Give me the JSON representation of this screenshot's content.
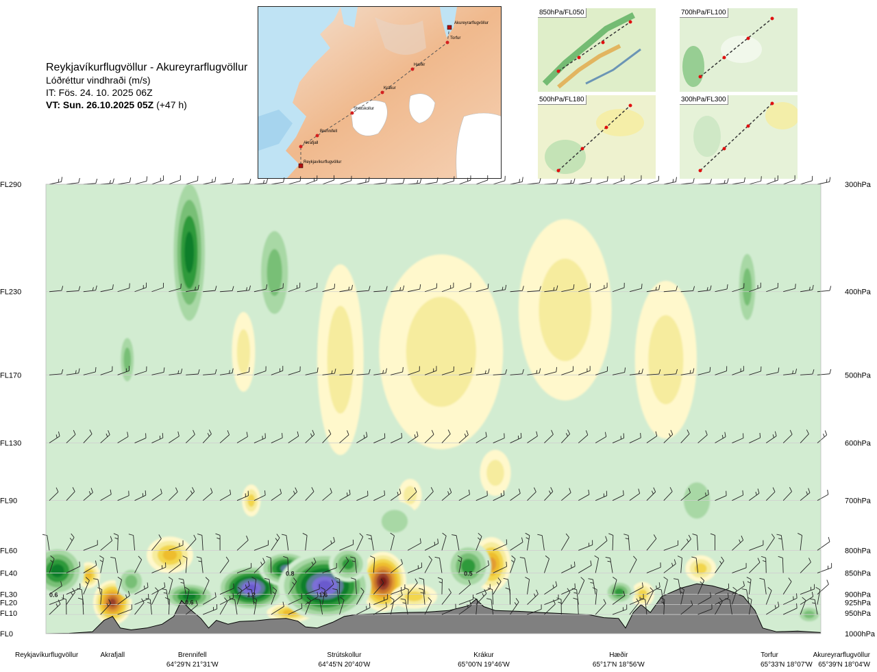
{
  "header": {
    "title": "Reykjavíkurflugvöllur - Akureyrarflugvöllur",
    "subtitle": "Lóðréttur vindhraði (m/s)",
    "issue_time": "IT: Fös. 24. 10. 2025 06Z",
    "valid_time": "VT: Sun. 26.10.2025 05Z",
    "lead_time": "(+47 h)"
  },
  "route_map": {
    "waypoints": [
      "Akureyrarflugvöllur",
      "Torfur",
      "Hæðir",
      "Krákur",
      "Strútskollur",
      "Brennifell",
      "Akrafjall",
      "Reykjavíkurflugvöllur"
    ]
  },
  "level_maps": [
    {
      "label": "850hPa/FL050"
    },
    {
      "label": "700hPa/FL100"
    },
    {
      "label": "500hPa/FL180"
    },
    {
      "label": "300hPa/FL300"
    }
  ],
  "chart_data": {
    "type": "heatmap",
    "title": "Lóðréttur vindhraði (m/s)",
    "flight_levels": [
      {
        "fl": "FL290",
        "hpa": "300hPa",
        "p": 300
      },
      {
        "fl": "FL230",
        "hpa": "400hPa",
        "p": 400
      },
      {
        "fl": "FL170",
        "hpa": "500hPa",
        "p": 500
      },
      {
        "fl": "FL130",
        "hpa": "600hPa",
        "p": 600
      },
      {
        "fl": "FL90",
        "hpa": "700hPa",
        "p": 700
      },
      {
        "fl": "FL60",
        "hpa": "800hPa",
        "p": 800
      },
      {
        "fl": "FL40",
        "hpa": "850hPa",
        "p": 850
      },
      {
        "fl": "FL30",
        "hpa": "900hPa",
        "p": 900
      },
      {
        "fl": "FL20",
        "hpa": "925hPa",
        "p": 925
      },
      {
        "fl": "FL10",
        "hpa": "950hPa",
        "p": 950
      },
      {
        "fl": "FL0",
        "hpa": "1000hPa",
        "p": 1000
      }
    ],
    "x_range": [
      0,
      100
    ],
    "stations": [
      {
        "name": "Reykjavíkurflugvöllur",
        "coord": "",
        "x": 0
      },
      {
        "name": "Akrafjall",
        "coord": "",
        "x": 8.6
      },
      {
        "name": "Brennifell",
        "coord": "64°29'N 21°31'W",
        "x": 18.9
      },
      {
        "name": "Strútskollur",
        "coord": "64°45'N 20°40'W",
        "x": 38.5
      },
      {
        "name": "Krákur",
        "coord": "65°00'N 19°46'W",
        "x": 56.5
      },
      {
        "name": "Hæðir",
        "coord": "65°17'N 18°56'W",
        "x": 73.9
      },
      {
        "name": "Torfur",
        "coord": "65°33'N 18°07'W",
        "x": 94.3
      },
      {
        "name": "Akureyrarflugvöllur",
        "coord": "65°39'N 18°04'W",
        "x": 100
      }
    ],
    "peak_labels": [
      {
        "text": "0.6",
        "x": 1,
        "p": 900
      },
      {
        "text": "0.6",
        "x": 18.5,
        "p": 918
      },
      {
        "text": "1.2",
        "x": 26.5,
        "p": 900
      },
      {
        "text": "0.8",
        "x": 31.5,
        "p": 850
      },
      {
        "text": "1.6",
        "x": 35.8,
        "p": 900
      },
      {
        "text": "0.5",
        "x": 54.5,
        "p": 850
      }
    ],
    "terrain_pressure": [
      {
        "x": 0,
        "p": 1000
      },
      {
        "x": 3,
        "p": 999
      },
      {
        "x": 6,
        "p": 995
      },
      {
        "x": 7.5,
        "p": 965
      },
      {
        "x": 8.6,
        "p": 955
      },
      {
        "x": 9.6,
        "p": 985
      },
      {
        "x": 11,
        "p": 990
      },
      {
        "x": 13,
        "p": 985
      },
      {
        "x": 15,
        "p": 975
      },
      {
        "x": 16.5,
        "p": 955
      },
      {
        "x": 17.5,
        "p": 915
      },
      {
        "x": 18.5,
        "p": 935
      },
      {
        "x": 20,
        "p": 960
      },
      {
        "x": 21,
        "p": 985
      },
      {
        "x": 22,
        "p": 965
      },
      {
        "x": 23.5,
        "p": 975
      },
      {
        "x": 25,
        "p": 968
      },
      {
        "x": 27,
        "p": 966
      },
      {
        "x": 29,
        "p": 962
      },
      {
        "x": 31,
        "p": 960
      },
      {
        "x": 32.5,
        "p": 967
      },
      {
        "x": 33.5,
        "p": 982
      },
      {
        "x": 35,
        "p": 985
      },
      {
        "x": 37,
        "p": 970
      },
      {
        "x": 38.5,
        "p": 955
      },
      {
        "x": 40,
        "p": 950
      },
      {
        "x": 43,
        "p": 948
      },
      {
        "x": 46,
        "p": 945
      },
      {
        "x": 49,
        "p": 944
      },
      {
        "x": 52,
        "p": 940
      },
      {
        "x": 54.5,
        "p": 928
      },
      {
        "x": 55.5,
        "p": 912
      },
      {
        "x": 56.5,
        "p": 930
      },
      {
        "x": 58,
        "p": 940
      },
      {
        "x": 61,
        "p": 942
      },
      {
        "x": 64,
        "p": 945
      },
      {
        "x": 67,
        "p": 948
      },
      {
        "x": 70,
        "p": 950
      },
      {
        "x": 72,
        "p": 958
      },
      {
        "x": 73.9,
        "p": 960
      },
      {
        "x": 74.8,
        "p": 985
      },
      {
        "x": 75.8,
        "p": 945
      },
      {
        "x": 76.8,
        "p": 925
      },
      {
        "x": 78,
        "p": 945
      },
      {
        "x": 79.5,
        "p": 905
      },
      {
        "x": 82,
        "p": 885
      },
      {
        "x": 84,
        "p": 875
      },
      {
        "x": 86,
        "p": 880
      },
      {
        "x": 88,
        "p": 890
      },
      {
        "x": 90,
        "p": 905
      },
      {
        "x": 91.5,
        "p": 940
      },
      {
        "x": 92.5,
        "p": 985
      },
      {
        "x": 94.3,
        "p": 995
      },
      {
        "x": 97,
        "p": 993
      },
      {
        "x": 100,
        "p": 997
      }
    ],
    "up_blobs": [
      {
        "x": 1.5,
        "p": 845,
        "rx": 3.5,
        "rp": 60,
        "v": 0.6
      },
      {
        "x": 11,
        "p": 870,
        "rx": 2,
        "rp": 40,
        "v": 0.2
      },
      {
        "x": 18.5,
        "p": 905,
        "rx": 3.5,
        "rp": 35,
        "v": 0.6
      },
      {
        "x": 26.5,
        "p": 885,
        "rx": 4.5,
        "rp": 55,
        "v": 1.2
      },
      {
        "x": 31,
        "p": 840,
        "rx": 3.5,
        "rp": 40,
        "v": 0.8
      },
      {
        "x": 36,
        "p": 880,
        "rx": 6,
        "rp": 80,
        "v": 1.6
      },
      {
        "x": 39,
        "p": 830,
        "rx": 2.5,
        "rp": 40,
        "v": 0.4
      },
      {
        "x": 54.5,
        "p": 835,
        "rx": 3,
        "rp": 55,
        "v": 0.5
      },
      {
        "x": 74,
        "p": 895,
        "rx": 2,
        "rp": 30,
        "v": 0.4
      },
      {
        "x": 98.5,
        "p": 950,
        "rx": 1.8,
        "rp": 25,
        "v": 0.3
      },
      {
        "x": 18.5,
        "p": 360,
        "rx": 2.5,
        "rp": 80,
        "v": 0.6
      },
      {
        "x": 29.5,
        "p": 380,
        "rx": 2.5,
        "rp": 60,
        "v": 0.3
      },
      {
        "x": 10.5,
        "p": 480,
        "rx": 1.2,
        "rp": 40,
        "v": 0.2
      },
      {
        "x": 90.5,
        "p": 395,
        "rx": 1.5,
        "rp": 50,
        "v": 0.2
      },
      {
        "x": 45,
        "p": 740,
        "rx": 3,
        "rp": 40,
        "v": 0.15
      },
      {
        "x": 84,
        "p": 700,
        "rx": 3,
        "rp": 60,
        "v": 0.15
      }
    ],
    "down_blobs": [
      {
        "x": 8.6,
        "p": 920,
        "rx": 2.5,
        "rp": 55,
        "v": 1.0
      },
      {
        "x": 5.5,
        "p": 855,
        "rx": 1.5,
        "rp": 30,
        "v": 0.4
      },
      {
        "x": 16,
        "p": 810,
        "rx": 3,
        "rp": 40,
        "v": 0.4
      },
      {
        "x": 31.5,
        "p": 945,
        "rx": 3,
        "rp": 25,
        "v": 0.5
      },
      {
        "x": 43.5,
        "p": 870,
        "rx": 3,
        "rp": 70,
        "v": 1.2
      },
      {
        "x": 47.5,
        "p": 905,
        "rx": 3,
        "rp": 30,
        "v": 0.3
      },
      {
        "x": 57.5,
        "p": 830,
        "rx": 2.5,
        "rp": 60,
        "v": 0.6
      },
      {
        "x": 77,
        "p": 900,
        "rx": 1.5,
        "rp": 30,
        "v": 0.3
      },
      {
        "x": 84.5,
        "p": 840,
        "rx": 2,
        "rp": 30,
        "v": 0.3
      },
      {
        "x": 25.5,
        "p": 470,
        "rx": 1.5,
        "rp": 50,
        "v": 0.15
      },
      {
        "x": 38,
        "p": 480,
        "rx": 3,
        "rp": 120,
        "v": 0.15
      },
      {
        "x": 51,
        "p": 470,
        "rx": 8,
        "rp": 120,
        "v": 0.12
      },
      {
        "x": 67,
        "p": 420,
        "rx": 6,
        "rp": 100,
        "v": 0.12
      },
      {
        "x": 80,
        "p": 480,
        "rx": 4,
        "rp": 100,
        "v": 0.12
      },
      {
        "x": 26.5,
        "p": 700,
        "rx": 1.2,
        "rp": 30,
        "v": 0.2
      },
      {
        "x": 47,
        "p": 690,
        "rx": 1.5,
        "rp": 30,
        "v": 0.15
      },
      {
        "x": 58,
        "p": 650,
        "rx": 2,
        "rp": 40,
        "v": 0.15
      }
    ],
    "contour_levels": [
      0.05,
      0.1,
      0.2,
      0.4,
      0.6,
      0.8,
      1.0,
      1.2
    ],
    "up_colors": [
      "#ffffff",
      "#d2ecd1",
      "#a8d8a5",
      "#78bf76",
      "#2d9a3a",
      "#0a7e2b",
      "#5a7e96",
      "#7b6fd6",
      "#6a5acd"
    ],
    "down_colors": [
      "#ffffff",
      "#fff8cc",
      "#f6ec9e",
      "#f2d64e",
      "#eebd2e",
      "#e29c33",
      "#c8732b",
      "#99402a",
      "#7a1a14"
    ],
    "background_color": "#d2ecd1",
    "terrain_color": "#808080",
    "wind_barb_levels": [
      300,
      400,
      500,
      600,
      700,
      800,
      850,
      900,
      925,
      950
    ]
  }
}
